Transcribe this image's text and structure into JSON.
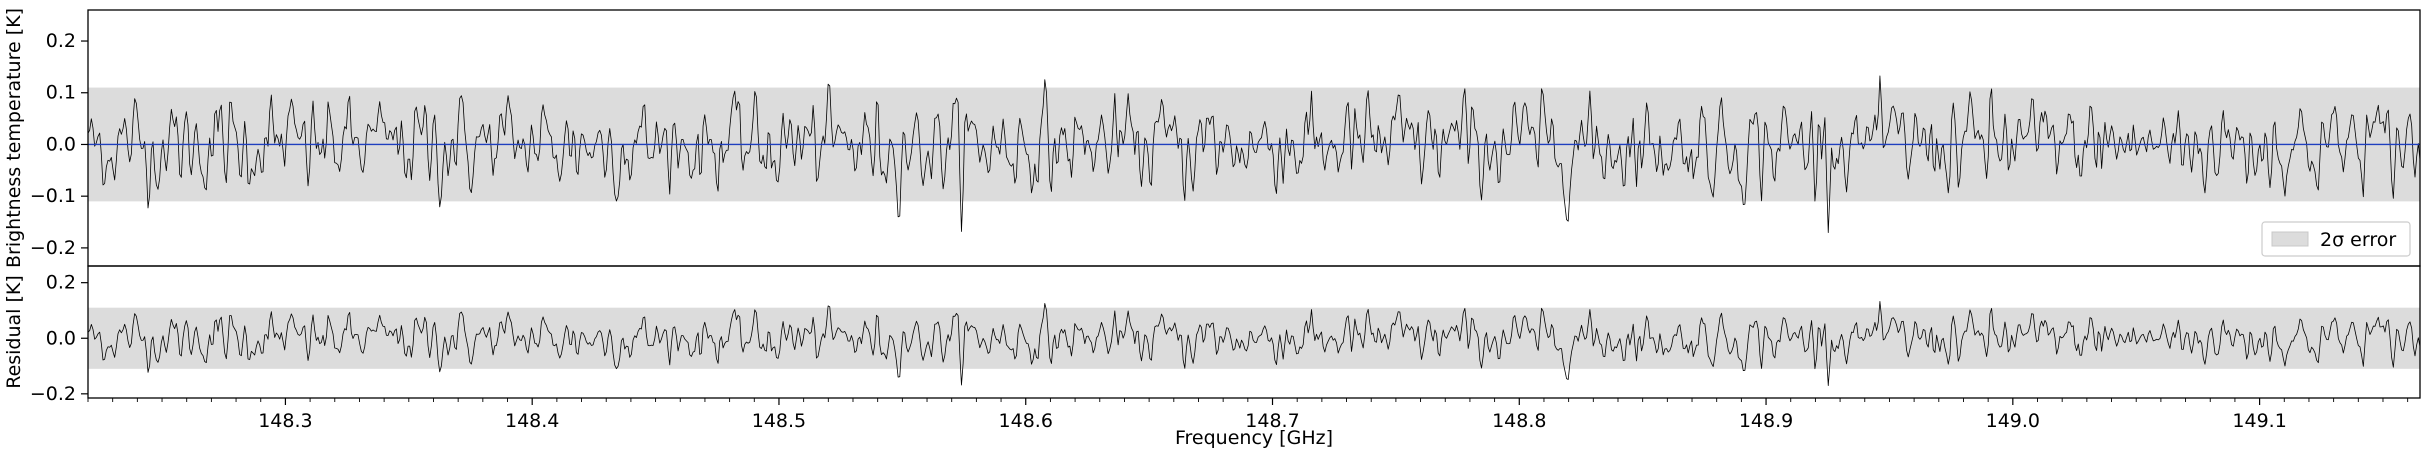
{
  "chart_data": [
    {
      "type": "line",
      "panel": "top",
      "ylabel": "Brightness temperature [K]",
      "xlim": [
        148.22,
        149.165
      ],
      "ylim": [
        -0.235,
        0.26
      ],
      "yticks": [
        -0.2,
        -0.1,
        0.0,
        0.1,
        0.2
      ],
      "ytick_labels": [
        "−0.2",
        "−0.1",
        "0.0",
        "0.1",
        "0.2"
      ],
      "error_band": [
        -0.11,
        0.11
      ],
      "series": [
        {
          "style": "spectrum",
          "color": "#000000",
          "x_range": [
            148.22,
            149.165
          ],
          "n_points": 1400,
          "y_range_approx": [
            -0.19,
            0.18
          ]
        },
        {
          "style": "model",
          "color": "#1f3fbf",
          "x": [
            148.22,
            149.165
          ],
          "y": [
            0.0,
            0.0
          ]
        }
      ],
      "legend": {
        "label": "2σ error",
        "placement": "lower-right"
      },
      "grid": false
    },
    {
      "type": "line",
      "panel": "bottom",
      "ylabel": "Residual [K]",
      "xlabel": "Frequency [GHz]",
      "xlim": [
        148.22,
        149.165
      ],
      "ylim": [
        -0.215,
        0.26
      ],
      "yticks": [
        -0.2,
        0.0,
        0.2
      ],
      "ytick_labels": [
        "−0.2",
        "0.0",
        "0.2"
      ],
      "xticks": [
        148.3,
        148.4,
        148.5,
        148.6,
        148.7,
        148.8,
        148.9,
        149.0,
        149.1
      ],
      "xtick_labels": [
        "148.3",
        "148.4",
        "148.5",
        "148.6",
        "148.7",
        "148.8",
        "148.9",
        "149.0",
        "149.1"
      ],
      "error_band": [
        -0.11,
        0.11
      ],
      "series": [
        {
          "style": "residual",
          "color": "#000000",
          "x_range": [
            148.22,
            149.165
          ],
          "n_points": 1400,
          "y_range_approx": [
            -0.19,
            0.18
          ]
        }
      ],
      "grid": false
    }
  ],
  "colors": {
    "band": "#dcdcdc",
    "model": "#1f3fbf",
    "spectrum": "#000000",
    "axes": "#000000"
  }
}
